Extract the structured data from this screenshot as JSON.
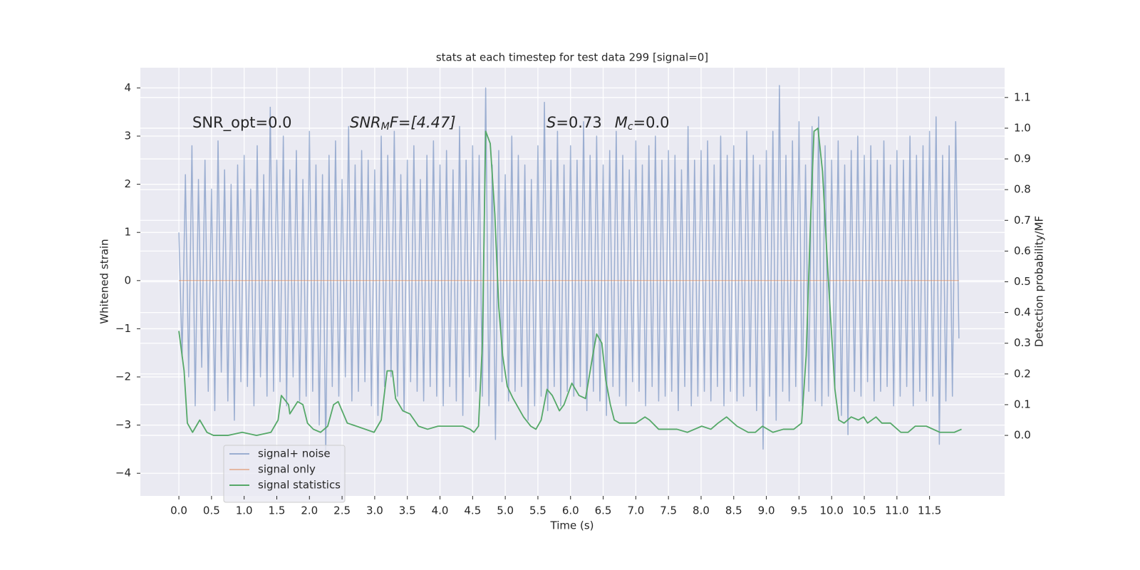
{
  "chart_data": {
    "type": "line",
    "title": "stats at each timestep for test data 299 [signal=0]",
    "xlabel": "Time (s)",
    "ylabel": "Whitened strain",
    "y2label": "Detection probability/MF",
    "xlim": [
      -0.59,
      12.65
    ],
    "ylim": [
      -4.47,
      4.42
    ],
    "y2lim": [
      -0.197,
      1.197
    ],
    "xticks": [
      {
        "value": 0,
        "label": "0.0"
      },
      {
        "value": 0.5,
        "label": "0.5"
      },
      {
        "value": 1,
        "label": "1.0"
      },
      {
        "value": 1.5,
        "label": "1.5"
      },
      {
        "value": 2,
        "label": "2.0"
      },
      {
        "value": 2.5,
        "label": "2.5"
      },
      {
        "value": 3,
        "label": "3.0"
      },
      {
        "value": 3.5,
        "label": "3.5"
      },
      {
        "value": 4,
        "label": "4.0"
      },
      {
        "value": 4.5,
        "label": "4.5"
      },
      {
        "value": 5,
        "label": "5.0"
      },
      {
        "value": 5.5,
        "label": "5.5"
      },
      {
        "value": 6,
        "label": "6.0"
      },
      {
        "value": 6.5,
        "label": "6.5"
      },
      {
        "value": 7,
        "label": "7.0"
      },
      {
        "value": 7.5,
        "label": "7.5"
      },
      {
        "value": 8,
        "label": "8.0"
      },
      {
        "value": 8.5,
        "label": "8.5"
      },
      {
        "value": 9,
        "label": "9.0"
      },
      {
        "value": 9.5,
        "label": "9.5"
      },
      {
        "value": 10,
        "label": "10.0"
      },
      {
        "value": 10.5,
        "label": "10.5"
      },
      {
        "value": 11,
        "label": "11.0"
      },
      {
        "value": 11.5,
        "label": "11.5"
      }
    ],
    "yticks": [
      {
        "value": -4,
        "label": "−4"
      },
      {
        "value": -3,
        "label": "−3"
      },
      {
        "value": -2,
        "label": "−2"
      },
      {
        "value": -1,
        "label": "−1"
      },
      0,
      1,
      2,
      3,
      4
    ],
    "y2ticks": [
      {
        "value": 0,
        "label": "0.0"
      },
      {
        "value": 0.1,
        "label": "0.1"
      },
      {
        "value": 0.2,
        "label": "0.2"
      },
      {
        "value": 0.3,
        "label": "0.3"
      },
      {
        "value": 0.4,
        "label": "0.4"
      },
      {
        "value": 0.5,
        "label": "0.5"
      },
      {
        "value": 0.6,
        "label": "0.6"
      },
      {
        "value": 0.7,
        "label": "0.7"
      },
      {
        "value": 0.8,
        "label": "0.8"
      },
      {
        "value": 0.9,
        "label": "0.9"
      },
      {
        "value": 1,
        "label": "1.0"
      },
      {
        "value": 1.1,
        "label": "1.1"
      }
    ],
    "grid": true,
    "legend": "lower left",
    "annotations": [
      {
        "parts": [
          "SNR_opt=0.0"
        ]
      },
      {
        "parts": [
          "SNR",
          "M",
          "F=[4.47]"
        ]
      },
      {
        "parts": [
          "S",
          "=0.73",
          "M",
          "c",
          "=0.0"
        ]
      }
    ],
    "series": [
      {
        "name": "signal+ noise",
        "color": "#4c72b0",
        "opacity": 0.5,
        "x": [
          0,
          0.05,
          0.1,
          0.15,
          0.2,
          0.25,
          0.3,
          0.35,
          0.4,
          0.45,
          0.5,
          0.55,
          0.6,
          0.65,
          0.7,
          0.75,
          0.8,
          0.85,
          0.9,
          0.95,
          1,
          1.05,
          1.1,
          1.15,
          1.2,
          1.25,
          1.3,
          1.35,
          1.4,
          1.45,
          1.5,
          1.55,
          1.6,
          1.65,
          1.7,
          1.75,
          1.8,
          1.85,
          1.9,
          1.95,
          2,
          2.05,
          2.1,
          2.15,
          2.2,
          2.25,
          2.3,
          2.35,
          2.4,
          2.45,
          2.5,
          2.55,
          2.6,
          2.65,
          2.7,
          2.75,
          2.8,
          2.85,
          2.9,
          2.95,
          3,
          3.05,
          3.1,
          3.15,
          3.2,
          3.25,
          3.3,
          3.35,
          3.4,
          3.45,
          3.5,
          3.55,
          3.6,
          3.65,
          3.7,
          3.75,
          3.8,
          3.85,
          3.9,
          3.95,
          4,
          4.05,
          4.1,
          4.15,
          4.2,
          4.25,
          4.3,
          4.35,
          4.4,
          4.45,
          4.5,
          4.55,
          4.6,
          4.65,
          4.7,
          4.75,
          4.8,
          4.85,
          4.9,
          4.95,
          5,
          5.05,
          5.1,
          5.15,
          5.2,
          5.25,
          5.3,
          5.35,
          5.4,
          5.45,
          5.5,
          5.55,
          5.6,
          5.65,
          5.7,
          5.75,
          5.8,
          5.85,
          5.9,
          5.95,
          6,
          6.05,
          6.1,
          6.15,
          6.2,
          6.25,
          6.3,
          6.35,
          6.4,
          6.45,
          6.5,
          6.55,
          6.6,
          6.65,
          6.7,
          6.75,
          6.8,
          6.85,
          6.9,
          6.95,
          7,
          7.05,
          7.1,
          7.15,
          7.2,
          7.25,
          7.3,
          7.35,
          7.4,
          7.45,
          7.5,
          7.55,
          7.6,
          7.65,
          7.7,
          7.75,
          7.8,
          7.85,
          7.9,
          7.95,
          8,
          8.05,
          8.1,
          8.15,
          8.2,
          8.25,
          8.3,
          8.35,
          8.4,
          8.45,
          8.5,
          8.55,
          8.6,
          8.65,
          8.7,
          8.75,
          8.8,
          8.85,
          8.9,
          8.95,
          9,
          9.05,
          9.1,
          9.15,
          9.2,
          9.25,
          9.3,
          9.35,
          9.4,
          9.45,
          9.5,
          9.55,
          9.6,
          9.65,
          9.7,
          9.75,
          9.8,
          9.85,
          9.9,
          9.95,
          10,
          10.05,
          10.1,
          10.15,
          10.2,
          10.25,
          10.3,
          10.35,
          10.4,
          10.45,
          10.5,
          10.55,
          10.6,
          10.65,
          10.7,
          10.75,
          10.8,
          10.85,
          10.9,
          10.95,
          11,
          11.05,
          11.1,
          11.15,
          11.2,
          11.25,
          11.3,
          11.35,
          11.4,
          11.45,
          11.5,
          11.55,
          11.6,
          11.65,
          11.7,
          11.75,
          11.8,
          11.85,
          11.9,
          11.95
        ],
        "values": [
          1.0,
          -1.6,
          2.2,
          -2.0,
          2.8,
          -2.6,
          2.1,
          -1.8,
          2.5,
          -2.3,
          1.9,
          -2.7,
          2.9,
          -1.9,
          2.3,
          -2.5,
          2.0,
          -2.9,
          2.4,
          -2.1,
          2.6,
          -2.2,
          1.9,
          -2.6,
          2.8,
          -2.0,
          2.2,
          -2.4,
          3.6,
          -2.3,
          2.5,
          -2.1,
          3.0,
          -2.6,
          2.3,
          -2.0,
          2.7,
          -2.5,
          2.1,
          -2.4,
          3.1,
          -2.3,
          2.4,
          -3.0,
          2.2,
          -3.6,
          2.6,
          -2.2,
          2.9,
          -2.4,
          2.1,
          -2.0,
          3.2,
          -2.5,
          2.4,
          -2.3,
          2.7,
          -2.1,
          2.5,
          -2.6,
          2.3,
          -2.8,
          3.0,
          -2.2,
          2.6,
          -2.0,
          3.1,
          -2.4,
          2.2,
          -2.7,
          2.5,
          -2.1,
          2.8,
          -2.3,
          2.1,
          -2.5,
          2.6,
          -2.2,
          2.9,
          -2.4,
          2.4,
          -2.6,
          2.7,
          -2.2,
          2.3,
          -2.5,
          3.2,
          -2.8,
          2.5,
          -2.0,
          2.8,
          -2.3,
          2.6,
          -2.4,
          4.0,
          -2.6,
          2.4,
          -3.3,
          2.7,
          -2.1,
          2.2,
          -2.5,
          3.0,
          -2.3,
          2.6,
          -2.2,
          2.4,
          -2.9,
          2.1,
          -2.6,
          2.8,
          -2.4,
          3.7,
          -2.7,
          2.5,
          -2.2,
          3.1,
          -2.6,
          2.4,
          -2.3,
          2.8,
          -2.4,
          2.5,
          -2.2,
          3.3,
          -2.7,
          2.6,
          -2.3,
          3.0,
          -2.5,
          2.4,
          -2.8,
          2.7,
          -2.2,
          3.1,
          -2.4,
          2.6,
          -2.6,
          2.3,
          -2.1,
          2.9,
          -2.3,
          2.4,
          -2.6,
          2.8,
          -2.2,
          3.0,
          -2.5,
          2.5,
          -2.4,
          2.7,
          -2.3,
          2.6,
          -2.7,
          2.3,
          -2.2,
          3.2,
          -2.6,
          2.5,
          -2.4,
          2.7,
          -2.3,
          2.9,
          -2.5,
          2.4,
          -2.2,
          3.0,
          -2.6,
          2.6,
          -2.3,
          2.8,
          -2.5,
          2.5,
          -2.4,
          3.1,
          -2.2,
          2.6,
          -2.7,
          2.4,
          -3.5,
          2.7,
          -2.4,
          3.1,
          -2.9,
          4.05,
          -2.3,
          2.6,
          -2.5,
          2.9,
          -2.2,
          3.3,
          -2.6,
          2.4,
          -2.3,
          3.2,
          -2.5,
          3.4,
          -2.6,
          2.8,
          -2.4,
          2.5,
          -2.2,
          2.9,
          -2.8,
          2.4,
          -3.2,
          2.7,
          -2.3,
          3.0,
          -2.4,
          2.6,
          -2.1,
          2.8,
          -2.5,
          2.5,
          -2.3,
          2.9,
          -2.2,
          2.4,
          -2.6,
          2.7,
          -2.4,
          2.5,
          -2.2,
          3.0,
          -2.6,
          2.6,
          -2.3,
          2.8,
          -2.5,
          3.1,
          -2.4,
          3.4,
          -3.4,
          2.6,
          -2.5,
          2.8,
          -2.4,
          3.3,
          -1.2
        ]
      },
      {
        "name": "signal only",
        "color": "#dd8452",
        "opacity": 0.5,
        "x": [
          0,
          11.95
        ],
        "values": [
          0,
          0
        ]
      },
      {
        "name": "signal statistics",
        "color": "#55a868",
        "opacity": 1,
        "axis": "y2",
        "x": [
          0,
          0.08,
          0.13,
          0.21,
          0.32,
          0.43,
          0.53,
          0.75,
          0.97,
          1.19,
          1.41,
          1.52,
          1.57,
          1.68,
          1.7,
          1.82,
          1.9,
          1.97,
          2.06,
          2.17,
          2.28,
          2.37,
          2.44,
          2.58,
          2.72,
          2.99,
          3.1,
          3.19,
          3.27,
          3.32,
          3.43,
          3.54,
          3.67,
          3.81,
          3.97,
          4.24,
          4.35,
          4.46,
          4.52,
          4.59,
          4.65,
          4.7,
          4.77,
          4.84,
          4.9,
          4.96,
          5.03,
          5.12,
          5.28,
          5.39,
          5.47,
          5.55,
          5.64,
          5.72,
          5.83,
          5.9,
          6.02,
          6.13,
          6.23,
          6.34,
          6.4,
          6.48,
          6.54,
          6.61,
          6.67,
          6.75,
          6.86,
          7,
          7.14,
          7.21,
          7.35,
          7.63,
          7.79,
          7.9,
          8.01,
          8.15,
          8.26,
          8.39,
          8.55,
          8.72,
          8.83,
          8.94,
          9.1,
          9.26,
          9.42,
          9.54,
          9.61,
          9.68,
          9.73,
          9.79,
          9.86,
          9.94,
          10.05,
          10.11,
          10.19,
          10.3,
          10.41,
          10.49,
          10.55,
          10.68,
          10.77,
          10.9,
          11.06,
          11.17,
          11.28,
          11.45,
          11.66,
          11.88,
          11.99
        ],
        "values": [
          0.34,
          0.21,
          0.04,
          0.01,
          0.05,
          0.01,
          0,
          0,
          0.01,
          0,
          0.01,
          0.05,
          0.13,
          0.1,
          0.07,
          0.11,
          0.1,
          0.04,
          0.02,
          0.01,
          0.03,
          0.1,
          0.11,
          0.04,
          0.03,
          0.01,
          0.05,
          0.21,
          0.21,
          0.12,
          0.08,
          0.07,
          0.03,
          0.02,
          0.03,
          0.03,
          0.03,
          0.02,
          0.01,
          0.03,
          0.3,
          0.99,
          0.95,
          0.72,
          0.42,
          0.26,
          0.16,
          0.12,
          0.06,
          0.03,
          0.02,
          0.05,
          0.15,
          0.13,
          0.08,
          0.1,
          0.17,
          0.13,
          0.12,
          0.26,
          0.33,
          0.3,
          0.18,
          0.1,
          0.05,
          0.04,
          0.04,
          0.04,
          0.06,
          0.05,
          0.02,
          0.02,
          0.01,
          0.02,
          0.03,
          0.02,
          0.04,
          0.06,
          0.03,
          0.01,
          0.01,
          0.03,
          0.01,
          0.02,
          0.02,
          0.04,
          0.26,
          0.72,
          0.99,
          1,
          0.86,
          0.54,
          0.15,
          0.05,
          0.04,
          0.06,
          0.05,
          0.06,
          0.04,
          0.06,
          0.04,
          0.04,
          0.01,
          0.01,
          0.03,
          0.03,
          0.01,
          0.01,
          0.02
        ]
      }
    ]
  }
}
